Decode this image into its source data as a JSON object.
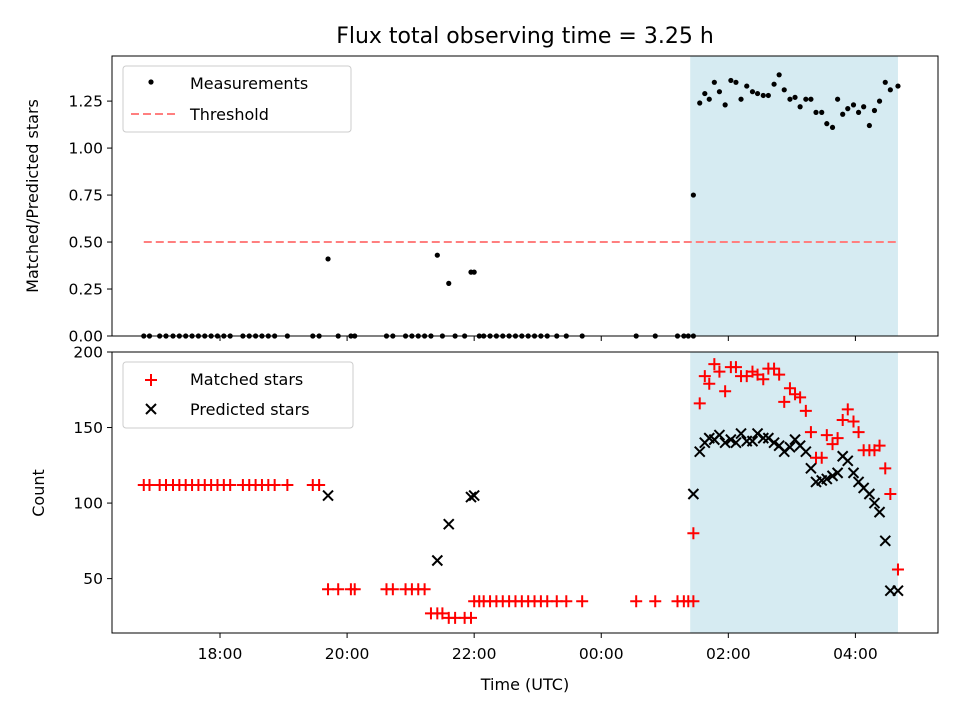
{
  "title": "Flux total observing time = 3.25 h",
  "colors": {
    "measurement": "#000000",
    "threshold": "#ff7f7f",
    "matched": "#ff0000",
    "predicted": "#000000",
    "highlight": "#add8e6"
  },
  "top_panel": {
    "ylabel": "Matched/Predicted stars",
    "legend": {
      "measurements": "Measurements",
      "threshold": "Threshold"
    }
  },
  "bottom_panel": {
    "ylabel": "Count",
    "xlabel": "Time (UTC)",
    "legend": {
      "matched": "Matched stars",
      "predicted": "Predicted stars"
    }
  },
  "chart_data": {
    "type": "scatter",
    "x_unit": "hours after 00:00 UTC on the first day (continuous)",
    "x_range": [
      16.3,
      29.3
    ],
    "x_ticks": [
      {
        "value": 18,
        "label": "18:00"
      },
      {
        "value": 20,
        "label": "20:00"
      },
      {
        "value": 22,
        "label": "22:00"
      },
      {
        "value": 24,
        "label": "00:00"
      },
      {
        "value": 26,
        "label": "02:00"
      },
      {
        "value": 28,
        "label": "04:00"
      }
    ],
    "highlight_span": [
      25.4,
      28.67
    ],
    "top": {
      "ylabel": "Matched/Predicted stars",
      "ylim": [
        0,
        1.49
      ],
      "y_ticks": [
        0.0,
        0.25,
        0.5,
        0.75,
        1.0,
        1.25
      ],
      "y_tick_labels": [
        "0.00",
        "0.25",
        "0.50",
        "0.75",
        "1.00",
        "1.25"
      ],
      "threshold": {
        "name": "Threshold",
        "value": 0.5,
        "x_range": [
          16.8,
          28.67
        ]
      },
      "measurements": {
        "name": "Measurements",
        "x": [
          16.8,
          16.89,
          17.05,
          17.15,
          17.26,
          17.36,
          17.46,
          17.56,
          17.66,
          17.76,
          17.86,
          17.96,
          18.06,
          18.16,
          18.36,
          18.46,
          18.56,
          18.66,
          18.76,
          18.86,
          19.06,
          19.46,
          19.56,
          19.7,
          19.86,
          20.06,
          20.12,
          20.62,
          20.72,
          20.92,
          21.02,
          21.12,
          21.22,
          21.32,
          21.42,
          21.5,
          21.6,
          21.7,
          21.85,
          21.95,
          22.0,
          22.08,
          22.15,
          22.25,
          22.35,
          22.45,
          22.55,
          22.65,
          22.75,
          22.85,
          22.95,
          23.05,
          23.15,
          23.3,
          23.45,
          23.7,
          24.55,
          24.85,
          25.2,
          25.3,
          25.37,
          25.45,
          25.45,
          25.55,
          25.63,
          25.7,
          25.78,
          25.86,
          25.95,
          26.04,
          26.12,
          26.2,
          26.29,
          26.38,
          26.46,
          26.55,
          26.63,
          26.72,
          26.8,
          26.88,
          26.97,
          27.05,
          27.13,
          27.22,
          27.3,
          27.38,
          27.47,
          27.55,
          27.64,
          27.72,
          27.8,
          27.88,
          27.97,
          28.05,
          28.13,
          28.22,
          28.3,
          28.38,
          28.47,
          28.55,
          28.67
        ],
        "y": [
          0,
          0,
          0,
          0,
          0,
          0,
          0,
          0,
          0,
          0,
          0,
          0,
          0,
          0,
          0,
          0,
          0,
          0,
          0,
          0,
          0,
          0,
          0,
          0.41,
          0,
          0,
          0,
          0,
          0,
          0,
          0,
          0,
          0,
          0,
          0.43,
          0,
          0.28,
          0,
          0,
          0.34,
          0.34,
          0,
          0,
          0,
          0,
          0,
          0,
          0,
          0,
          0,
          0,
          0,
          0,
          0,
          0,
          0,
          0,
          0,
          0,
          0,
          0,
          0,
          0.75,
          1.24,
          1.29,
          1.26,
          1.35,
          1.3,
          1.23,
          1.36,
          1.35,
          1.26,
          1.33,
          1.3,
          1.29,
          1.28,
          1.28,
          1.34,
          1.39,
          1.31,
          1.26,
          1.27,
          1.22,
          1.26,
          1.26,
          1.19,
          1.19,
          1.13,
          1.11,
          1.26,
          1.18,
          1.21,
          1.23,
          1.19,
          1.22,
          1.12,
          1.2,
          1.25,
          1.35,
          1.31,
          1.33
        ]
      }
    },
    "bottom": {
      "ylabel": "Count",
      "xlabel": "Time (UTC)",
      "ylim": [
        14,
        200
      ],
      "y_ticks": [
        50,
        100,
        150,
        200
      ],
      "series": [
        {
          "name": "Matched stars",
          "marker": "+",
          "x": [
            16.8,
            16.89,
            17.05,
            17.15,
            17.26,
            17.36,
            17.46,
            17.56,
            17.66,
            17.76,
            17.86,
            17.96,
            18.06,
            18.16,
            18.36,
            18.46,
            18.56,
            18.66,
            18.76,
            18.86,
            19.06,
            19.46,
            19.56,
            19.7,
            19.86,
            20.06,
            20.12,
            20.62,
            20.72,
            20.92,
            21.02,
            21.12,
            21.22,
            21.32,
            21.42,
            21.5,
            21.6,
            21.7,
            21.85,
            21.95,
            22.0,
            22.08,
            22.15,
            22.25,
            22.35,
            22.45,
            22.55,
            22.65,
            22.75,
            22.85,
            22.95,
            23.05,
            23.15,
            23.3,
            23.45,
            23.7,
            24.55,
            24.85,
            25.2,
            25.3,
            25.37,
            25.45,
            25.45,
            25.55,
            25.63,
            25.7,
            25.78,
            25.86,
            25.95,
            26.04,
            26.12,
            26.2,
            26.29,
            26.38,
            26.46,
            26.55,
            26.63,
            26.72,
            26.8,
            26.88,
            26.97,
            27.05,
            27.13,
            27.22,
            27.3,
            27.38,
            27.47,
            27.55,
            27.64,
            27.72,
            27.8,
            27.88,
            27.97,
            28.05,
            28.13,
            28.22,
            28.3,
            28.38,
            28.47,
            28.55,
            28.67
          ],
          "y": [
            112,
            112,
            112,
            112,
            112,
            112,
            112,
            112,
            112,
            112,
            112,
            112,
            112,
            112,
            112,
            112,
            112,
            112,
            112,
            112,
            112,
            112,
            112,
            43,
            43,
            43,
            43,
            43,
            43,
            43,
            43,
            43,
            43,
            27,
            27,
            27,
            24,
            24,
            24,
            24,
            35,
            35,
            35,
            35,
            35,
            35,
            35,
            35,
            35,
            35,
            35,
            35,
            35,
            35,
            35,
            35,
            35,
            35,
            35,
            35,
            35,
            35,
            80,
            166,
            184,
            179,
            192,
            187,
            174,
            190,
            190,
            184,
            184,
            187,
            185,
            182,
            189,
            189,
            185,
            167,
            176,
            172,
            170,
            161,
            147,
            130,
            130,
            145,
            139,
            143,
            155,
            162,
            154,
            147,
            135,
            135,
            135,
            138,
            123,
            106,
            56
          ]
        },
        {
          "name": "Predicted stars",
          "marker": "x",
          "x": [
            19.7,
            21.42,
            21.6,
            21.95,
            22.0,
            25.45,
            25.55,
            25.63,
            25.7,
            25.78,
            25.86,
            25.95,
            26.04,
            26.12,
            26.2,
            26.29,
            26.38,
            26.46,
            26.55,
            26.63,
            26.72,
            26.8,
            26.88,
            26.97,
            27.05,
            27.13,
            27.22,
            27.3,
            27.38,
            27.47,
            27.55,
            27.64,
            27.72,
            27.8,
            27.88,
            27.97,
            28.05,
            28.13,
            28.22,
            28.3,
            28.38,
            28.47,
            28.55,
            28.67
          ],
          "y": [
            105,
            62,
            86,
            104,
            105,
            106,
            134,
            140,
            143,
            142,
            145,
            140,
            142,
            140,
            146,
            141,
            141,
            146,
            143,
            143,
            140,
            138,
            134,
            137,
            142,
            138,
            134,
            123,
            114,
            115,
            116,
            118,
            120,
            131,
            128,
            120,
            114,
            110,
            106,
            100,
            94,
            75,
            42,
            42
          ]
        }
      ]
    }
  }
}
